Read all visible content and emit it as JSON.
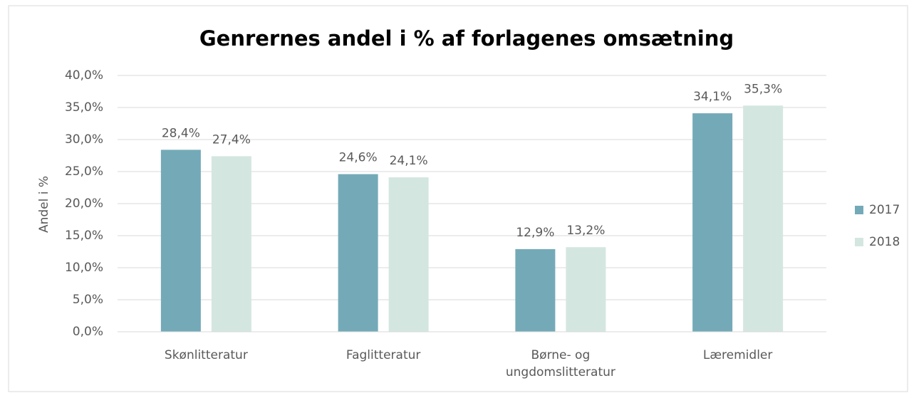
{
  "chart_data": {
    "type": "bar",
    "title": "Genrernes andel i % af forlagenes omsætning",
    "ylabel": "Andel i %",
    "categories": [
      "Skønlitteratur",
      "Faglitteratur",
      "Børne- og ungdomslitteratur",
      "Læremidler"
    ],
    "series": [
      {
        "name": "2017",
        "color": "#74aab8",
        "values": [
          28.4,
          24.6,
          12.9,
          34.1
        ],
        "value_labels": [
          "28,4%",
          "24,6%",
          "12,9%",
          "34,1%"
        ]
      },
      {
        "name": "2018",
        "color": "#d4e6e0",
        "values": [
          27.4,
          24.1,
          13.2,
          35.3
        ],
        "value_labels": [
          "27,4%",
          "24,1%",
          "13,2%",
          "35,3%"
        ]
      }
    ],
    "ylim": [
      0,
      40
    ],
    "yticks": [
      {
        "value": 0,
        "label": "0,0%"
      },
      {
        "value": 5,
        "label": "5,0%"
      },
      {
        "value": 10,
        "label": "10,0%"
      },
      {
        "value": 15,
        "label": "15,0%"
      },
      {
        "value": 20,
        "label": "20,0%"
      },
      {
        "value": 25,
        "label": "25,0%"
      },
      {
        "value": 30,
        "label": "30,0%"
      },
      {
        "value": 35,
        "label": "35,0%"
      },
      {
        "value": 40,
        "label": "40,0%"
      }
    ],
    "grid": true,
    "legend": "right"
  }
}
